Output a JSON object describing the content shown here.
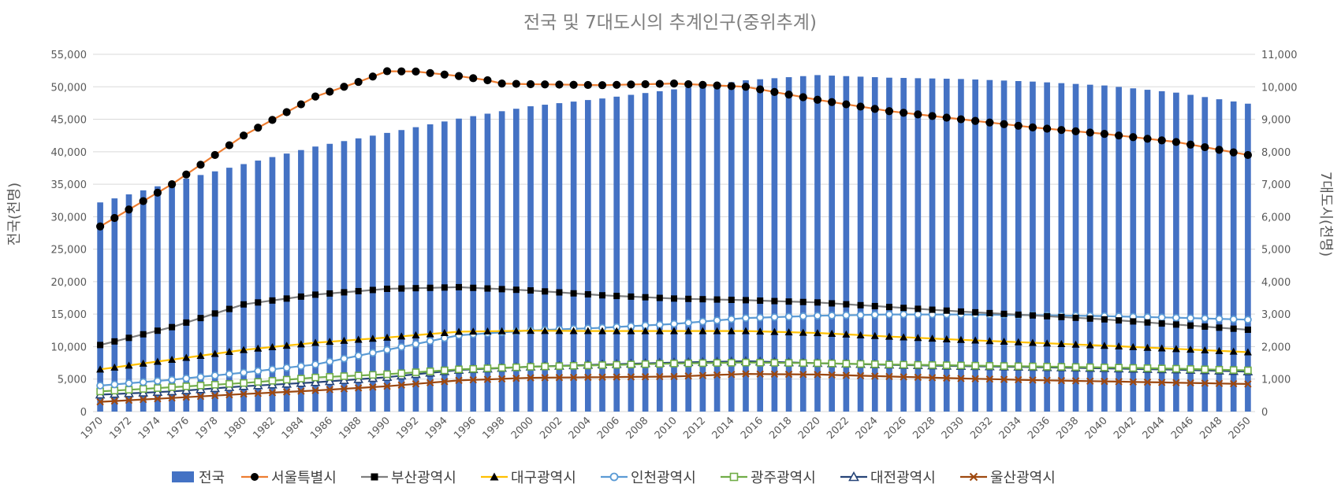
{
  "chart_data": {
    "type": "bar",
    "title": "전국 및 7대도시의 추계인구(중위추계)",
    "ylabel": "전국(천명)",
    "y2label": "7대도시(천명)",
    "ylim": [
      0,
      55000
    ],
    "y2lim": [
      0,
      11000
    ],
    "y_ticks": [
      "0",
      "5,000",
      "10,000",
      "15,000",
      "20,000",
      "25,000",
      "30,000",
      "35,000",
      "40,000",
      "45,000",
      "50,000",
      "55,000"
    ],
    "y2_ticks": [
      "0",
      "1,000",
      "2,000",
      "3,000",
      "4,000",
      "5,000",
      "6,000",
      "7,000",
      "8,000",
      "9,000",
      "10,000",
      "11,000"
    ],
    "y_tick_values": [
      0,
      5000,
      10000,
      15000,
      20000,
      25000,
      30000,
      35000,
      40000,
      45000,
      50000,
      55000
    ],
    "y2_tick_values": [
      0,
      1000,
      2000,
      3000,
      4000,
      5000,
      6000,
      7000,
      8000,
      9000,
      10000,
      11000
    ],
    "x_start": 1970,
    "x_end": 2050,
    "x_tick_labels": [
      "1970",
      "1972",
      "1974",
      "1976",
      "1978",
      "1980",
      "1982",
      "1984",
      "1986",
      "1988",
      "1990",
      "1992",
      "1994",
      "1996",
      "1998",
      "2000",
      "2002",
      "2004",
      "2006",
      "2008",
      "2010",
      "2012",
      "2014",
      "2016",
      "2018",
      "2020",
      "2022",
      "2024",
      "2026",
      "2028",
      "2030",
      "2032",
      "2034",
      "2036",
      "2038",
      "2040",
      "2042",
      "2044",
      "2046",
      "2048",
      "2050"
    ],
    "grid": true,
    "legend_position": "bottom",
    "bar_series": {
      "name": "전국",
      "axis": "left",
      "color": "#4472c4",
      "anchors": [
        [
          1970,
          32200
        ],
        [
          1975,
          35300
        ],
        [
          1980,
          38100
        ],
        [
          1985,
          40800
        ],
        [
          1990,
          42900
        ],
        [
          1995,
          45100
        ],
        [
          2000,
          47000
        ],
        [
          2005,
          48200
        ],
        [
          2010,
          49600
        ],
        [
          2015,
          51000
        ],
        [
          2020,
          51800
        ],
        [
          2025,
          51400
        ],
        [
          2030,
          51200
        ],
        [
          2035,
          50800
        ],
        [
          2040,
          50200
        ],
        [
          2045,
          49100
        ],
        [
          2050,
          47400
        ]
      ]
    },
    "line_series": [
      {
        "name": "서울특별시",
        "color": "#ed7d31",
        "marker": "circle-filled",
        "anchors": [
          [
            1970,
            5700
          ],
          [
            1975,
            7000
          ],
          [
            1980,
            8500
          ],
          [
            1985,
            9700
          ],
          [
            1988,
            10150
          ],
          [
            1990,
            10480
          ],
          [
            1992,
            10470
          ],
          [
            1995,
            10330
          ],
          [
            1997,
            10200
          ],
          [
            1998,
            10100
          ],
          [
            2000,
            10080
          ],
          [
            2005,
            10050
          ],
          [
            2010,
            10100
          ],
          [
            2015,
            10000
          ],
          [
            2020,
            9600
          ],
          [
            2025,
            9250
          ],
          [
            2030,
            9000
          ],
          [
            2035,
            8750
          ],
          [
            2040,
            8550
          ],
          [
            2045,
            8300
          ],
          [
            2050,
            7900
          ]
        ]
      },
      {
        "name": "부산광역시",
        "color": "#7f7f7f",
        "marker": "square-black",
        "anchors": [
          [
            1970,
            2050
          ],
          [
            1975,
            2600
          ],
          [
            1980,
            3300
          ],
          [
            1985,
            3600
          ],
          [
            1990,
            3780
          ],
          [
            1995,
            3830
          ],
          [
            2000,
            3730
          ],
          [
            2005,
            3580
          ],
          [
            2010,
            3480
          ],
          [
            2015,
            3430
          ],
          [
            2020,
            3360
          ],
          [
            2025,
            3220
          ],
          [
            2030,
            3080
          ],
          [
            2035,
            2960
          ],
          [
            2040,
            2840
          ],
          [
            2045,
            2680
          ],
          [
            2050,
            2520
          ]
        ]
      },
      {
        "name": "대구광역시",
        "color": "#ffc000",
        "marker": "triangle-filled",
        "anchors": [
          [
            1970,
            1300
          ],
          [
            1975,
            1600
          ],
          [
            1980,
            1900
          ],
          [
            1985,
            2120
          ],
          [
            1990,
            2280
          ],
          [
            1995,
            2460
          ],
          [
            2000,
            2490
          ],
          [
            2005,
            2480
          ],
          [
            2010,
            2480
          ],
          [
            2015,
            2480
          ],
          [
            2020,
            2420
          ],
          [
            2025,
            2310
          ],
          [
            2030,
            2210
          ],
          [
            2035,
            2120
          ],
          [
            2040,
            2030
          ],
          [
            2045,
            1930
          ],
          [
            2050,
            1830
          ]
        ]
      },
      {
        "name": "인천광역시",
        "color": "#5b9bd5",
        "marker": "circle-open",
        "anchors": [
          [
            1970,
            800
          ],
          [
            1975,
            980
          ],
          [
            1980,
            1200
          ],
          [
            1985,
            1450
          ],
          [
            1990,
            1900
          ],
          [
            1995,
            2350
          ],
          [
            2000,
            2500
          ],
          [
            2005,
            2580
          ],
          [
            2010,
            2700
          ],
          [
            2015,
            2880
          ],
          [
            2020,
            2950
          ],
          [
            2025,
            2990
          ],
          [
            2030,
            2990
          ],
          [
            2035,
            2970
          ],
          [
            2040,
            2940
          ],
          [
            2045,
            2890
          ],
          [
            2050,
            2830
          ]
        ]
      },
      {
        "name": "광주광역시",
        "color": "#70ad47",
        "marker": "square-open",
        "anchors": [
          [
            1970,
            620
          ],
          [
            1975,
            750
          ],
          [
            1980,
            880
          ],
          [
            1985,
            1050
          ],
          [
            1990,
            1150
          ],
          [
            1995,
            1300
          ],
          [
            2000,
            1380
          ],
          [
            2005,
            1430
          ],
          [
            2010,
            1480
          ],
          [
            2015,
            1510
          ],
          [
            2020,
            1490
          ],
          [
            2025,
            1450
          ],
          [
            2030,
            1420
          ],
          [
            2035,
            1390
          ],
          [
            2040,
            1360
          ],
          [
            2045,
            1320
          ],
          [
            2050,
            1270
          ]
        ]
      },
      {
        "name": "대전광역시",
        "color": "#264478",
        "marker": "triangle-open",
        "anchors": [
          [
            1970,
            520
          ],
          [
            1975,
            620
          ],
          [
            1980,
            780
          ],
          [
            1985,
            900
          ],
          [
            1990,
            1060
          ],
          [
            1995,
            1280
          ],
          [
            2000,
            1380
          ],
          [
            2005,
            1450
          ],
          [
            2010,
            1510
          ],
          [
            2015,
            1550
          ],
          [
            2020,
            1490
          ],
          [
            2025,
            1440
          ],
          [
            2030,
            1400
          ],
          [
            2035,
            1370
          ],
          [
            2040,
            1330
          ],
          [
            2045,
            1290
          ],
          [
            2050,
            1230
          ]
        ]
      },
      {
        "name": "울산광역시",
        "color": "#9e480e",
        "marker": "x",
        "anchors": [
          [
            1970,
            300
          ],
          [
            1975,
            420
          ],
          [
            1980,
            540
          ],
          [
            1985,
            650
          ],
          [
            1990,
            780
          ],
          [
            1995,
            960
          ],
          [
            2000,
            1040
          ],
          [
            2005,
            1060
          ],
          [
            2010,
            1080
          ],
          [
            2015,
            1160
          ],
          [
            2020,
            1140
          ],
          [
            2025,
            1080
          ],
          [
            2030,
            1020
          ],
          [
            2035,
            970
          ],
          [
            2040,
            930
          ],
          [
            2045,
            890
          ],
          [
            2050,
            850
          ]
        ]
      }
    ]
  }
}
